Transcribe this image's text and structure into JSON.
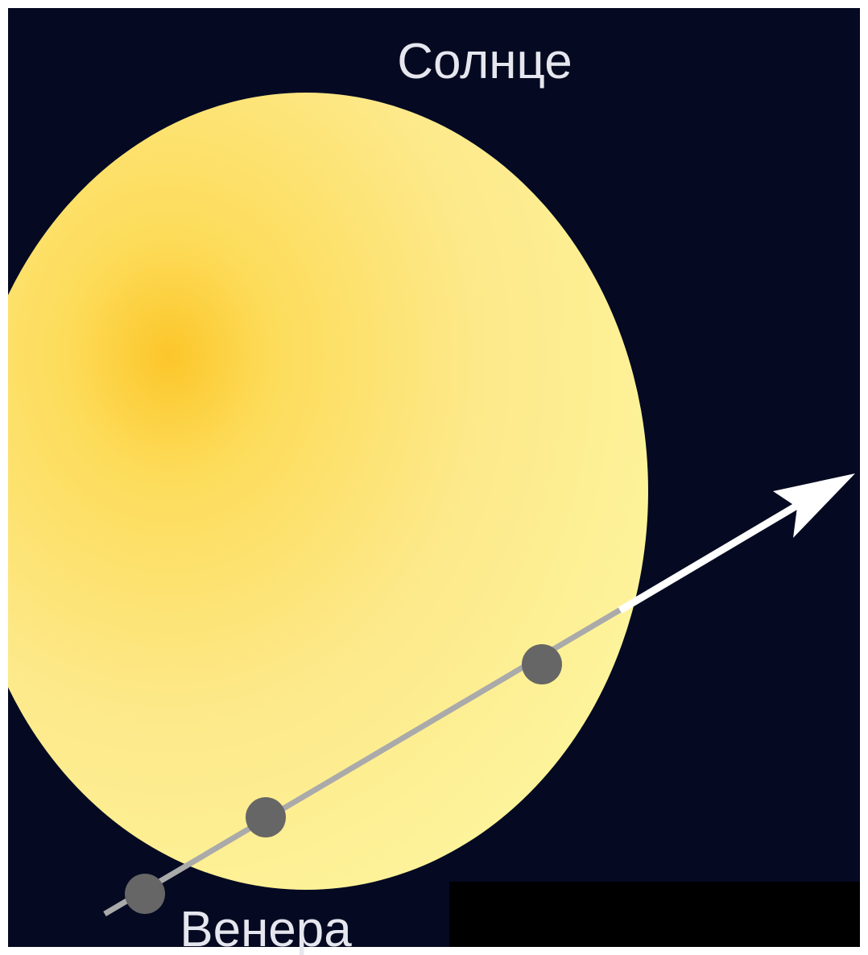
{
  "labels": {
    "sun": "Солнце",
    "venus": "Венера"
  }
}
